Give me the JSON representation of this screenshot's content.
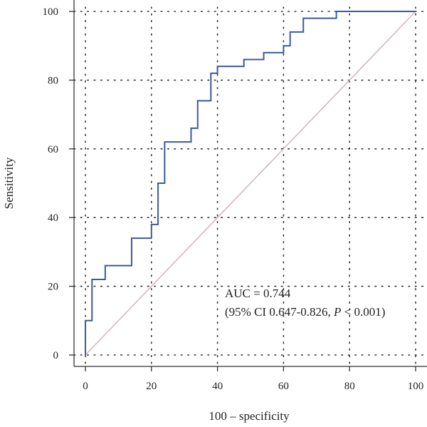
{
  "chart_data": {
    "type": "line",
    "xlabel": "100 – specificity",
    "ylabel": "Sensitivity",
    "xlim": [
      0,
      100
    ],
    "ylim": [
      0,
      100
    ],
    "xticks": [
      "0",
      "20",
      "40",
      "60",
      "80",
      "100"
    ],
    "yticks": [
      "0",
      "20",
      "40",
      "60",
      "80",
      "100"
    ],
    "grid": "dotted",
    "series": [
      {
        "color": "#3a5ba0",
        "x": [
          0,
          0,
          2,
          2,
          6,
          6,
          14,
          14,
          20,
          20,
          22,
          22,
          24,
          24,
          32,
          32,
          34,
          34,
          38,
          38,
          40,
          40,
          48,
          48,
          54,
          54,
          60,
          60,
          62,
          62,
          66,
          66,
          76,
          76,
          100
        ],
        "y": [
          0,
          10,
          10,
          22,
          22,
          26,
          26,
          34,
          34,
          38,
          38,
          50,
          50,
          62,
          62,
          66,
          66,
          74,
          74,
          82,
          82,
          84,
          84,
          86,
          86,
          88,
          88,
          90,
          90,
          94,
          94,
          98,
          98,
          100,
          100
        ]
      },
      {
        "color": "#d4b8c0",
        "x": [
          0,
          100
        ],
        "y": [
          0,
          100
        ]
      }
    ],
    "annotation": {
      "line1": "AUC = 0.744",
      "line2_prefix": "(95% CI 0.647-0.826, ",
      "line2_p": "P",
      "line2_suffix": " < 0.001)"
    }
  }
}
